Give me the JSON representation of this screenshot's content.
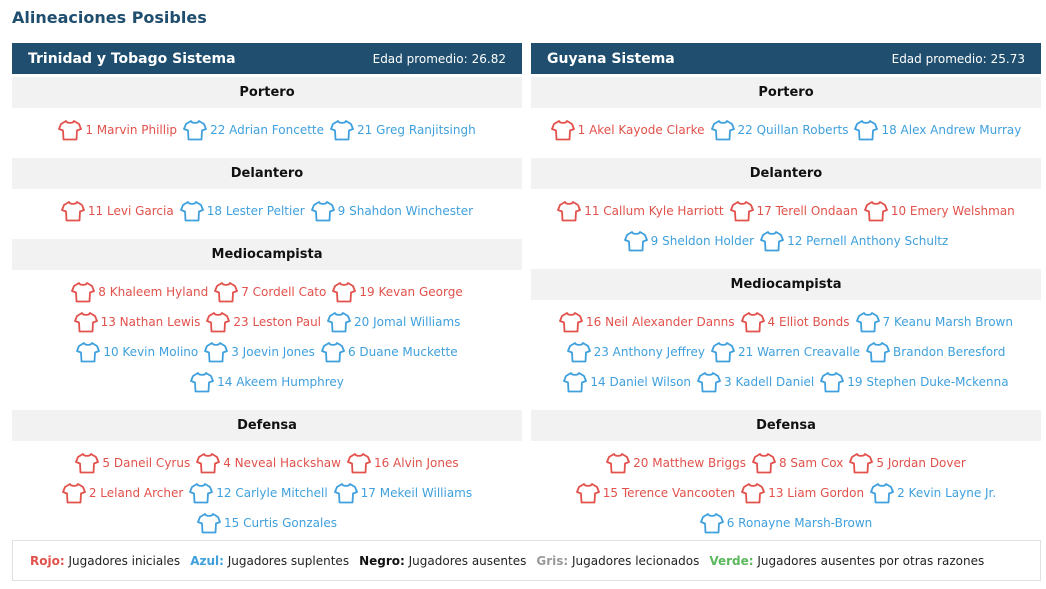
{
  "title": "Alineaciones Posibles",
  "colors": {
    "header_bg": "#1f4e6e",
    "red": "#e2514b",
    "blue": "#3fa0dd",
    "black": "#111111",
    "grey": "#9a9a9a",
    "green": "#5cb85c"
  },
  "teams": [
    {
      "name": "Trinidad y Tobago Sistema",
      "avg_label": "Edad promedio:",
      "avg_value": "26.82",
      "sections": [
        {
          "label": "Portero",
          "rows": [
            [
              {
                "text": "1 Marvin Phillip",
                "color": "red"
              },
              {
                "text": "22 Adrian Foncette",
                "color": "blue"
              },
              {
                "text": "21 Greg Ranjitsingh",
                "color": "blue"
              }
            ]
          ]
        },
        {
          "label": "Delantero",
          "rows": [
            [
              {
                "text": "11 Levi Garcia",
                "color": "red"
              },
              {
                "text": "18 Lester Peltier",
                "color": "blue"
              },
              {
                "text": "9 Shahdon Winchester",
                "color": "blue"
              }
            ]
          ]
        },
        {
          "label": "Mediocampista",
          "rows": [
            [
              {
                "text": "8 Khaleem Hyland",
                "color": "red"
              },
              {
                "text": "7 Cordell Cato",
                "color": "red"
              },
              {
                "text": "19 Kevan George",
                "color": "red"
              }
            ],
            [
              {
                "text": "13 Nathan Lewis",
                "color": "red"
              },
              {
                "text": "23 Leston Paul",
                "color": "red"
              },
              {
                "text": "20 Jomal Williams",
                "color": "blue"
              }
            ],
            [
              {
                "text": "10 Kevin Molino",
                "color": "blue"
              },
              {
                "text": "3 Joevin Jones",
                "color": "blue"
              },
              {
                "text": "6 Duane Muckette",
                "color": "blue"
              }
            ],
            [
              {
                "text": "14 Akeem Humphrey",
                "color": "blue"
              }
            ]
          ]
        },
        {
          "label": "Defensa",
          "rows": [
            [
              {
                "text": "5 Daneil Cyrus",
                "color": "red"
              },
              {
                "text": "4 Neveal Hackshaw",
                "color": "red"
              },
              {
                "text": "16 Alvin Jones",
                "color": "red"
              }
            ],
            [
              {
                "text": "2 Leland Archer",
                "color": "red"
              },
              {
                "text": "12 Carlyle Mitchell",
                "color": "blue"
              },
              {
                "text": "17 Mekeil Williams",
                "color": "blue"
              }
            ],
            [
              {
                "text": "15 Curtis Gonzales",
                "color": "blue"
              }
            ]
          ]
        }
      ]
    },
    {
      "name": "Guyana Sistema",
      "avg_label": "Edad promedio:",
      "avg_value": "25.73",
      "sections": [
        {
          "label": "Portero",
          "rows": [
            [
              {
                "text": "1 Akel Kayode Clarke",
                "color": "red"
              },
              {
                "text": "22 Quillan Roberts",
                "color": "blue"
              },
              {
                "text": "18 Alex Andrew Murray",
                "color": "blue"
              }
            ]
          ]
        },
        {
          "label": "Delantero",
          "rows": [
            [
              {
                "text": "11 Callum Kyle Harriott",
                "color": "red"
              },
              {
                "text": "17 Terell Ondaan",
                "color": "red"
              },
              {
                "text": "10 Emery Welshman",
                "color": "red"
              }
            ],
            [
              {
                "text": "9 Sheldon Holder",
                "color": "blue"
              },
              {
                "text": "12 Pernell Anthony Schultz",
                "color": "blue"
              }
            ]
          ]
        },
        {
          "label": "Mediocampista",
          "rows": [
            [
              {
                "text": "16 Neil Alexander Danns",
                "color": "red"
              },
              {
                "text": "4 Elliot Bonds",
                "color": "red"
              },
              {
                "text": "7 Keanu Marsh Brown",
                "color": "blue"
              }
            ],
            [
              {
                "text": "23 Anthony Jeffrey",
                "color": "blue"
              },
              {
                "text": "21 Warren Creavalle",
                "color": "blue"
              },
              {
                "text": "Brandon Beresford",
                "color": "blue"
              }
            ],
            [
              {
                "text": "14 Daniel Wilson",
                "color": "blue"
              },
              {
                "text": "3 Kadell Daniel",
                "color": "blue"
              },
              {
                "text": "19 Stephen Duke-Mckenna",
                "color": "blue"
              }
            ]
          ]
        },
        {
          "label": "Defensa",
          "rows": [
            [
              {
                "text": "20 Matthew Briggs",
                "color": "red"
              },
              {
                "text": "8 Sam Cox",
                "color": "red"
              },
              {
                "text": "5 Jordan Dover",
                "color": "red"
              }
            ],
            [
              {
                "text": "15 Terence Vancooten",
                "color": "red"
              },
              {
                "text": "13 Liam Gordon",
                "color": "red"
              },
              {
                "text": "2 Kevin Layne Jr.",
                "color": "blue"
              }
            ],
            [
              {
                "text": "6 Ronayne Marsh-Brown",
                "color": "blue"
              }
            ]
          ]
        }
      ]
    }
  ],
  "legend": [
    {
      "key": "Rojo:",
      "desc": "Jugadores iniciales",
      "color": "#e2514b"
    },
    {
      "key": "Azul:",
      "desc": "Jugadores suplentes",
      "color": "#3fa0dd"
    },
    {
      "key": "Negro:",
      "desc": "Jugadores ausentes",
      "color": "#111111"
    },
    {
      "key": "Gris:",
      "desc": "Jugadores lecionados",
      "color": "#9a9a9a"
    },
    {
      "key": "Verde:",
      "desc": "Jugadores ausentes por otras razones",
      "color": "#5cb85c"
    }
  ]
}
